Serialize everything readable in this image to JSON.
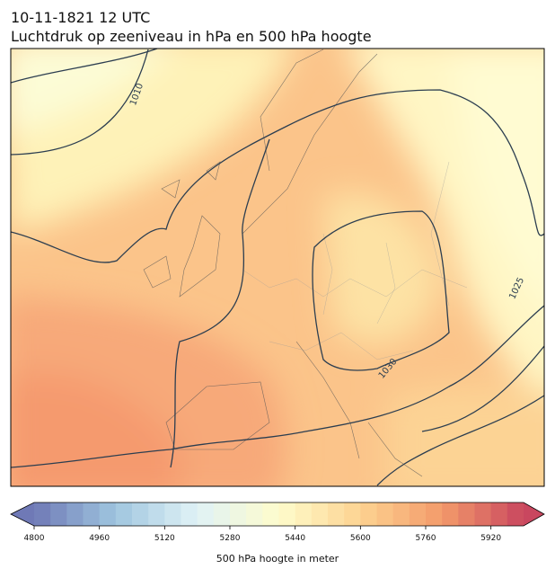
{
  "header": {
    "title_line1": "10-11-1821 12 UTC",
    "title_line2": "Luchtdruk op zeeniveau in hPa en 500 hPa hoogte"
  },
  "map": {
    "contour_labels": [
      "1010",
      "1025",
      "1030"
    ]
  },
  "colorbar": {
    "range": [
      4800,
      6000
    ],
    "step": 40,
    "ticks": [
      4800,
      4960,
      5120,
      5280,
      5440,
      5600,
      5760,
      5920
    ],
    "colormap": [
      "#6f79b6",
      "#9fc6df",
      "#e0f2f6",
      "#fefccc",
      "#fdd391",
      "#f39a6a",
      "#c9475f"
    ],
    "label": "500 hPa hoogte in meter"
  }
}
